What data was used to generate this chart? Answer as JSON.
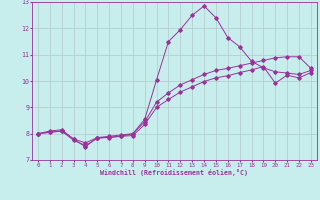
{
  "xlabel": "Windchill (Refroidissement éolien,°C)",
  "xlim": [
    -0.5,
    23.5
  ],
  "ylim": [
    7,
    13
  ],
  "xticks": [
    0,
    1,
    2,
    3,
    4,
    5,
    6,
    7,
    8,
    9,
    10,
    11,
    12,
    13,
    14,
    15,
    16,
    17,
    18,
    19,
    20,
    21,
    22,
    23
  ],
  "yticks": [
    7,
    8,
    9,
    10,
    11,
    12,
    13
  ],
  "background_color": "#c8eded",
  "line_color": "#993399",
  "grid_color": "#b0c8c8",
  "line1_y": [
    8.0,
    8.1,
    8.15,
    7.8,
    7.5,
    7.85,
    7.85,
    7.9,
    8.0,
    8.55,
    10.05,
    11.5,
    11.95,
    12.5,
    12.85,
    12.4,
    11.65,
    11.3,
    10.75,
    10.5,
    10.35,
    10.3,
    10.25,
    10.4
  ],
  "line2_y": [
    8.0,
    8.05,
    8.1,
    7.8,
    7.65,
    7.85,
    7.9,
    7.95,
    8.0,
    8.45,
    9.2,
    9.55,
    9.85,
    10.05,
    10.25,
    10.4,
    10.48,
    10.58,
    10.68,
    10.78,
    10.88,
    10.92,
    10.92,
    10.48
  ],
  "line3_y": [
    8.0,
    8.05,
    8.1,
    7.75,
    7.55,
    7.82,
    7.87,
    7.9,
    7.93,
    8.35,
    9.0,
    9.3,
    9.58,
    9.78,
    9.98,
    10.12,
    10.2,
    10.32,
    10.42,
    10.55,
    9.92,
    10.22,
    10.12,
    10.32
  ]
}
